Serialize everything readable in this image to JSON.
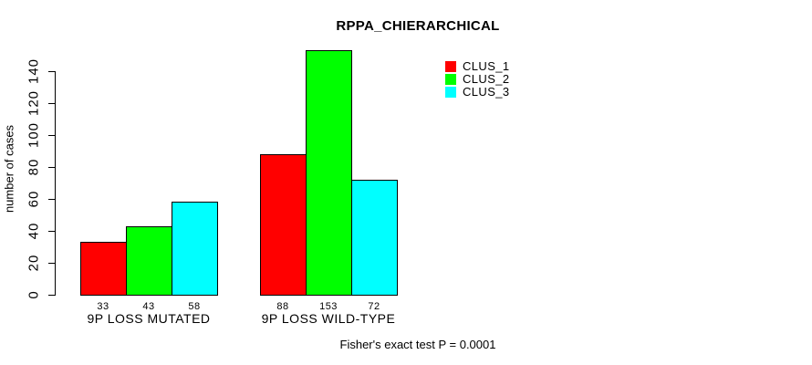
{
  "chart_data": {
    "type": "bar",
    "title": "RPPA_CHIERARCHICAL",
    "ylabel": "number of cases",
    "xlabel": "",
    "categories": [
      "9P LOSS MUTATED",
      "9P LOSS WILD-TYPE"
    ],
    "series": [
      {
        "name": "CLUS_1",
        "color": "#ff0000",
        "values": [
          33,
          88
        ]
      },
      {
        "name": "CLUS_2",
        "color": "#00ff00",
        "values": [
          43,
          153
        ]
      },
      {
        "name": "CLUS_3",
        "color": "#00ffff",
        "values": [
          58,
          72
        ]
      }
    ],
    "ylim": [
      0,
      140
    ],
    "yticks": [
      0,
      20,
      40,
      60,
      80,
      100,
      120,
      140
    ],
    "show_bar_values": true,
    "grid": false,
    "legend_position": "top-right",
    "background_color": "#ffffff",
    "bar_border_color": "#000000",
    "annotation": "Fisher's exact test P = 0.0001"
  }
}
